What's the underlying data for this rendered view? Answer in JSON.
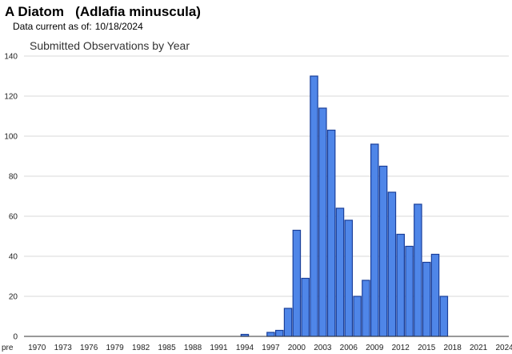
{
  "header": {
    "species_title": "A Diatom   (Adlafia minuscula)",
    "data_current_label": "Data current as of:",
    "data_current_date": "10/18/2024"
  },
  "colors": {
    "bar_fill": "#4f86e8",
    "bar_stroke": "#1a3f9a",
    "grid": "#d9d9d9",
    "axis": "#333333"
  },
  "chart_data": {
    "type": "bar",
    "title": "Submitted Observations by Year",
    "xlabel": "",
    "ylabel": "",
    "ylim": [
      0,
      140
    ],
    "yticks": [
      0,
      20,
      40,
      60,
      80,
      100,
      120,
      140
    ],
    "grid": true,
    "legend": "none",
    "categories": [
      "pre",
      "1970",
      "1971",
      "1972",
      "1973",
      "1974",
      "1975",
      "1976",
      "1977",
      "1978",
      "1979",
      "1980",
      "1981",
      "1982",
      "1983",
      "1984",
      "1985",
      "1986",
      "1987",
      "1988",
      "1989",
      "1990",
      "1991",
      "1992",
      "1993",
      "1994",
      "1995",
      "1996",
      "1997",
      "1998",
      "1999",
      "2000",
      "2001",
      "2002",
      "2003",
      "2004",
      "2005",
      "2006",
      "2007",
      "2008",
      "2009",
      "2010",
      "2011",
      "2012",
      "2013",
      "2014",
      "2015",
      "2016",
      "2017",
      "2018",
      "2019",
      "2020",
      "2021",
      "2022",
      "2023",
      "2024"
    ],
    "tick_labels": [
      "pre",
      "1970",
      "1973",
      "1976",
      "1979",
      "1982",
      "1985",
      "1988",
      "1991",
      "1994",
      "1997",
      "2000",
      "2003",
      "2006",
      "2009",
      "2012",
      "2015",
      "2018",
      "2021",
      "2024"
    ],
    "values": [
      0,
      0,
      0,
      0,
      0,
      0,
      0,
      0,
      0,
      0,
      0,
      0,
      0,
      0,
      0,
      0,
      0,
      0,
      0,
      0,
      0,
      0,
      0,
      0,
      0,
      1,
      0,
      0,
      2,
      3,
      14,
      53,
      29,
      130,
      114,
      103,
      64,
      58,
      20,
      28,
      96,
      85,
      72,
      51,
      45,
      66,
      37,
      41,
      20,
      0,
      0,
      0,
      0,
      0,
      0,
      0
    ]
  }
}
